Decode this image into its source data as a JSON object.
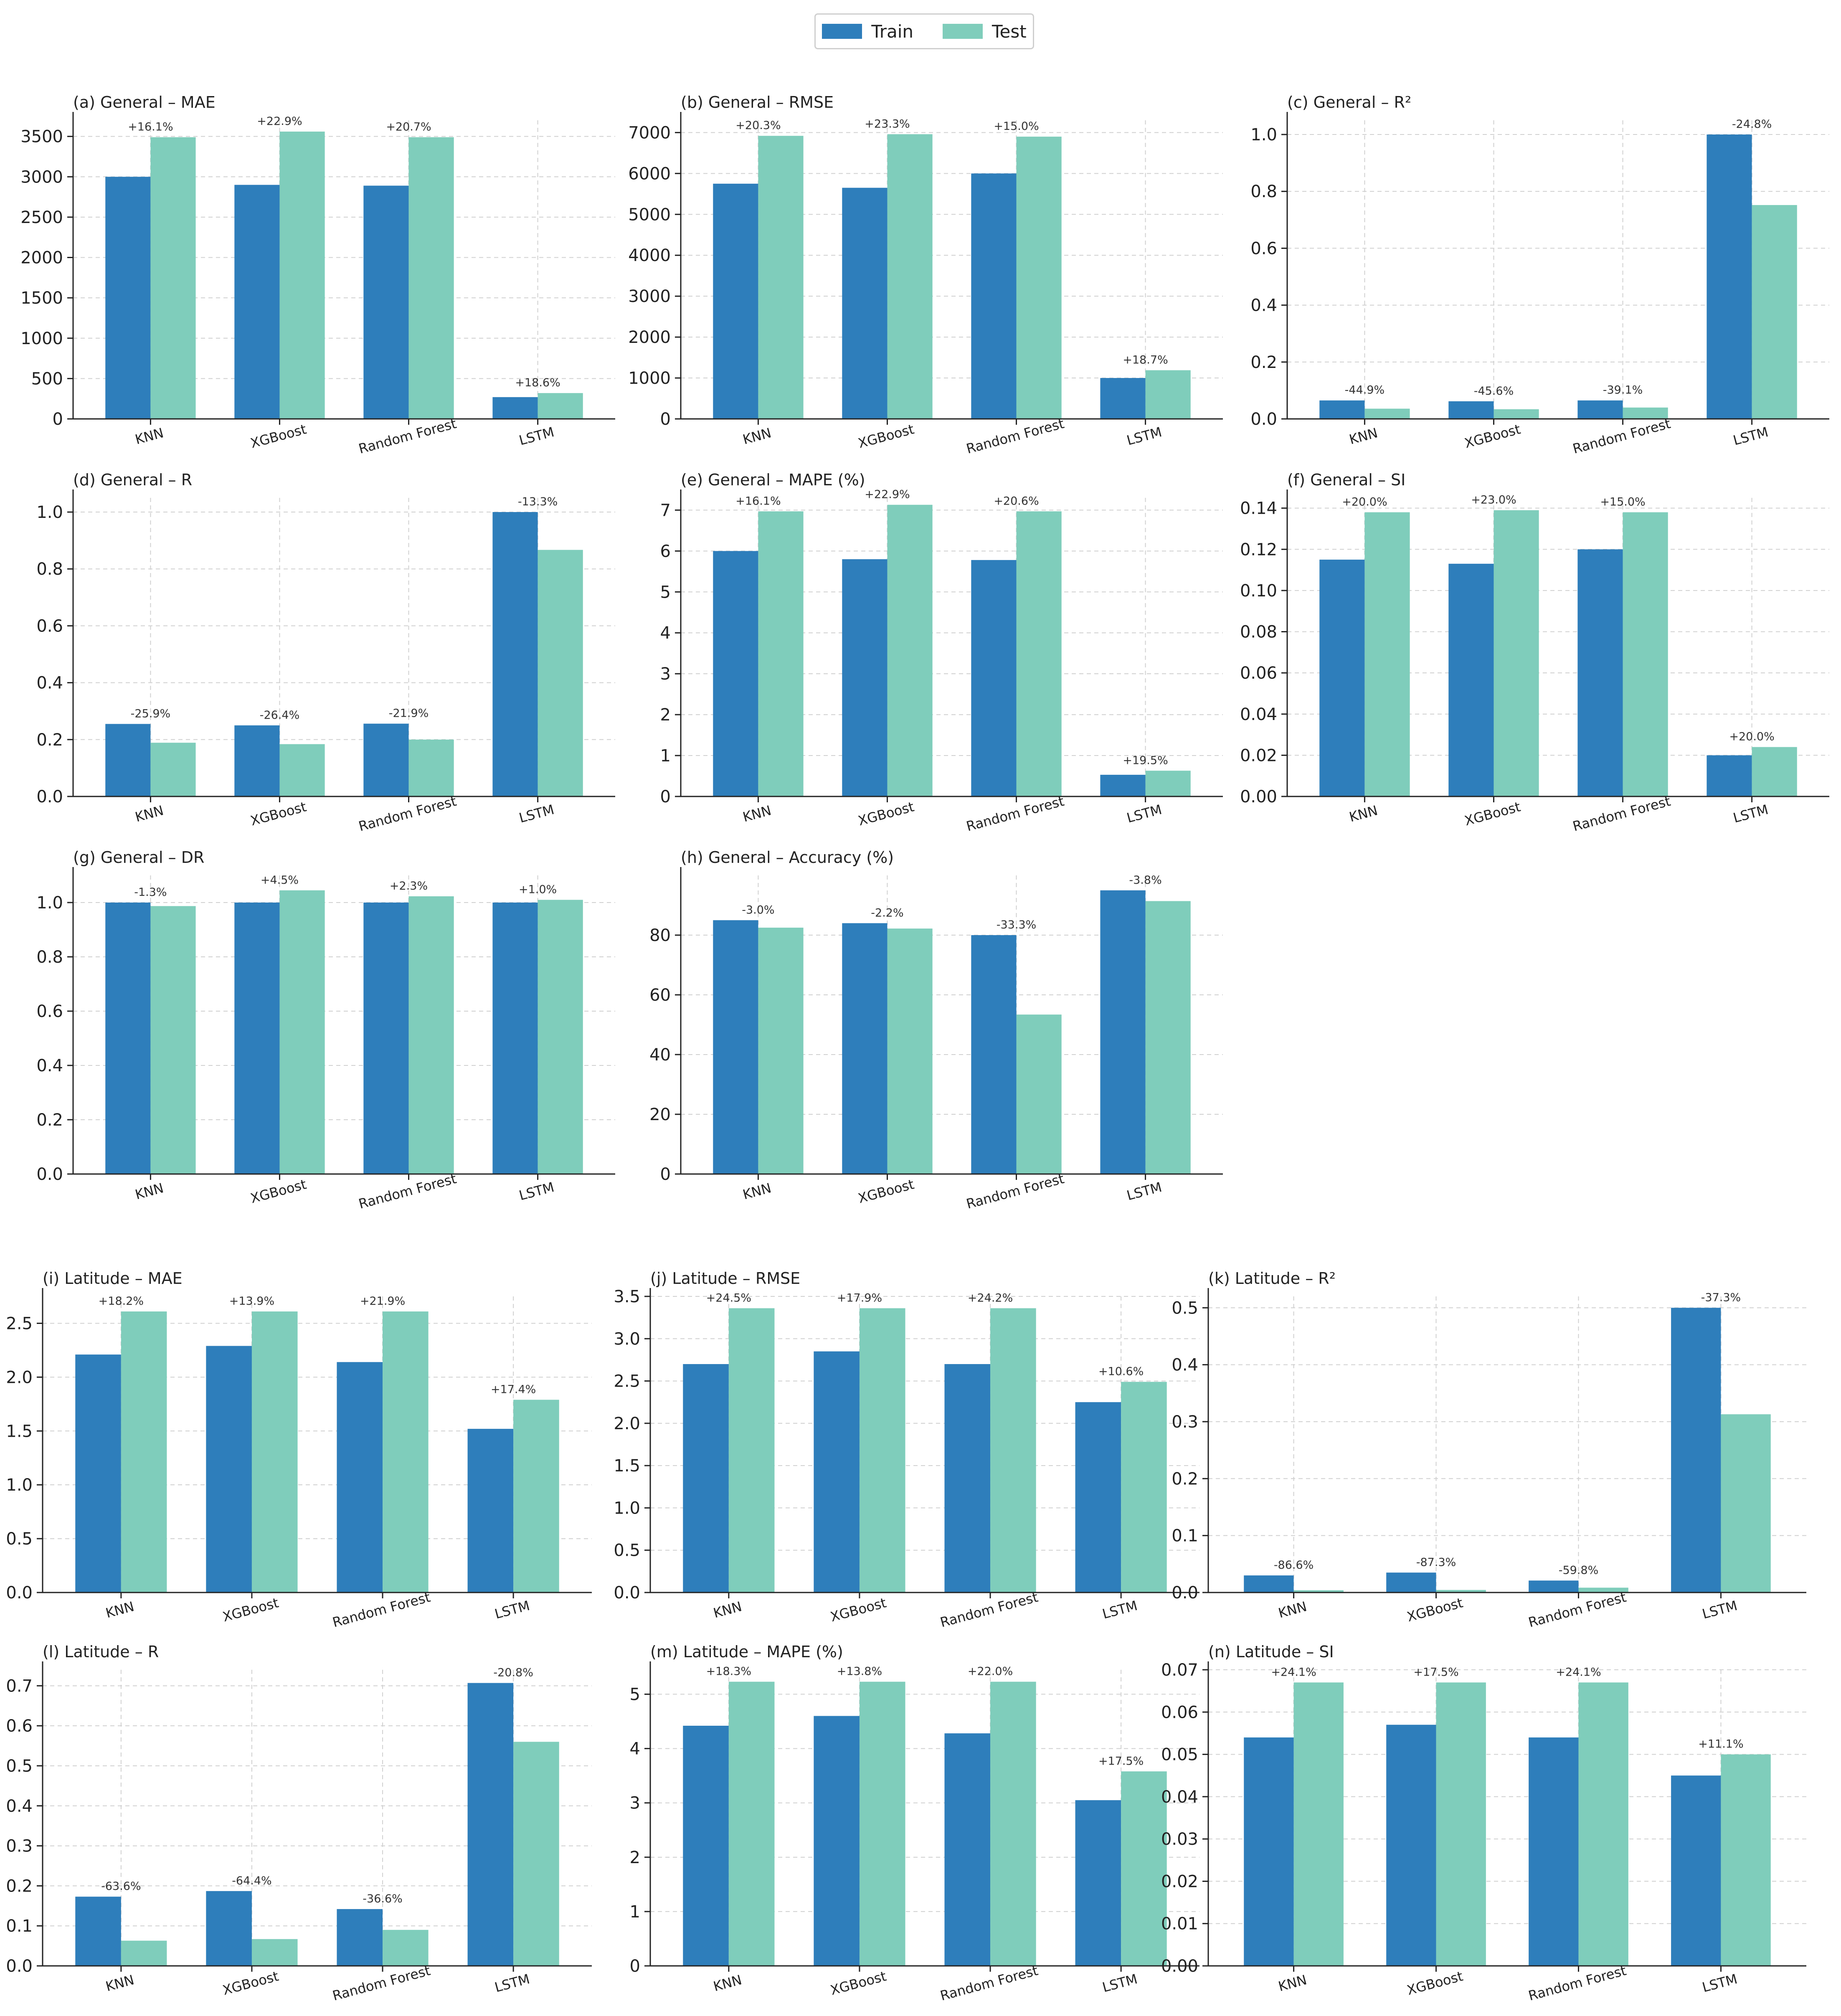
{
  "legend": {
    "train_label": "Train",
    "test_label": "Test"
  },
  "colors": {
    "train": "#2e7ebb",
    "test": "#7fcdbb",
    "grid": "#d0d0d0",
    "axis": "#222222"
  },
  "chart_data": [
    {
      "type": "bar",
      "title": "(a) General – MAE",
      "categories": [
        "KNN",
        "XGBoost",
        "Random Forest",
        "LSTM"
      ],
      "series": [
        {
          "name": "Train",
          "values": [
            3000,
            2900,
            2890,
            270
          ]
        },
        {
          "name": "Test",
          "values": [
            3490,
            3560,
            3490,
            320
          ]
        }
      ],
      "labels": [
        "+16.1%",
        "+22.9%",
        "+20.7%",
        "+18.6%"
      ],
      "ylim": [
        0,
        3700
      ],
      "yticks": [
        0,
        500,
        1000,
        1500,
        2000,
        2500,
        3000,
        3500
      ],
      "tick_format": "int"
    },
    {
      "type": "bar",
      "title": "(b) General – RMSE",
      "categories": [
        "KNN",
        "XGBoost",
        "Random Forest",
        "LSTM"
      ],
      "series": [
        {
          "name": "Train",
          "values": [
            5750,
            5650,
            6000,
            1000
          ]
        },
        {
          "name": "Test",
          "values": [
            6920,
            6960,
            6900,
            1190
          ]
        }
      ],
      "labels": [
        "+20.3%",
        "+23.3%",
        "+15.0%",
        "+18.7%"
      ],
      "ylim": [
        0,
        7300
      ],
      "yticks": [
        0,
        1000,
        2000,
        3000,
        4000,
        5000,
        6000,
        7000
      ],
      "tick_format": "int"
    },
    {
      "type": "bar",
      "title": "(c) General – R²",
      "categories": [
        "KNN",
        "XGBoost",
        "Random Forest",
        "LSTM"
      ],
      "series": [
        {
          "name": "Train",
          "values": [
            0.065,
            0.062,
            0.065,
            1.0
          ]
        },
        {
          "name": "Test",
          "values": [
            0.036,
            0.034,
            0.04,
            0.752
          ]
        }
      ],
      "labels": [
        "-44.9%",
        "-45.6%",
        "-39.1%",
        "-24.8%"
      ],
      "ylim": [
        0,
        1.05
      ],
      "yticks": [
        0,
        0.2,
        0.4,
        0.6,
        0.8,
        1.0
      ],
      "tick_format": "1"
    },
    {
      "type": "bar",
      "title": "(d) General – R",
      "categories": [
        "KNN",
        "XGBoost",
        "Random Forest",
        "LSTM"
      ],
      "series": [
        {
          "name": "Train",
          "values": [
            0.255,
            0.25,
            0.256,
            1.0
          ]
        },
        {
          "name": "Test",
          "values": [
            0.189,
            0.184,
            0.2,
            0.867
          ]
        }
      ],
      "labels": [
        "-25.9%",
        "-26.4%",
        "-21.9%",
        "-13.3%"
      ],
      "ylim": [
        0,
        1.05
      ],
      "yticks": [
        0,
        0.2,
        0.4,
        0.6,
        0.8,
        1.0
      ],
      "tick_format": "1"
    },
    {
      "type": "bar",
      "title": "(e) General – MAPE (%)",
      "categories": [
        "KNN",
        "XGBoost",
        "Random Forest",
        "LSTM"
      ],
      "series": [
        {
          "name": "Train",
          "values": [
            6.0,
            5.8,
            5.78,
            0.53
          ]
        },
        {
          "name": "Test",
          "values": [
            6.97,
            7.13,
            6.97,
            0.63
          ]
        }
      ],
      "labels": [
        "+16.1%",
        "+22.9%",
        "+20.6%",
        "+19.5%"
      ],
      "ylim": [
        0,
        7.3
      ],
      "yticks": [
        0,
        1,
        2,
        3,
        4,
        5,
        6,
        7
      ],
      "tick_format": "int"
    },
    {
      "type": "bar",
      "title": "(f) General – SI",
      "categories": [
        "KNN",
        "XGBoost",
        "Random Forest",
        "LSTM"
      ],
      "series": [
        {
          "name": "Train",
          "values": [
            0.115,
            0.113,
            0.12,
            0.02
          ]
        },
        {
          "name": "Test",
          "values": [
            0.138,
            0.139,
            0.138,
            0.024
          ]
        }
      ],
      "labels": [
        "+20.0%",
        "+23.0%",
        "+15.0%",
        "+20.0%"
      ],
      "ylim": [
        0,
        0.145
      ],
      "yticks": [
        0,
        0.02,
        0.04,
        0.06,
        0.08,
        0.1,
        0.12,
        0.14
      ],
      "tick_format": "2"
    },
    {
      "type": "bar",
      "title": "(g) General – DR",
      "categories": [
        "KNN",
        "XGBoost",
        "Random Forest",
        "LSTM"
      ],
      "series": [
        {
          "name": "Train",
          "values": [
            1.0,
            1.0,
            1.0,
            1.0
          ]
        },
        {
          "name": "Test",
          "values": [
            0.987,
            1.045,
            1.023,
            1.01
          ]
        }
      ],
      "labels": [
        "-1.3%",
        "+4.5%",
        "+2.3%",
        "+1.0%"
      ],
      "ylim": [
        0,
        1.1
      ],
      "yticks": [
        0,
        0.2,
        0.4,
        0.6,
        0.8,
        1.0
      ],
      "tick_format": "1"
    },
    {
      "type": "bar",
      "title": "(h) General – Accuracy (%)",
      "categories": [
        "KNN",
        "XGBoost",
        "Random Forest",
        "LSTM"
      ],
      "series": [
        {
          "name": "Train",
          "values": [
            85,
            84,
            80,
            95
          ]
        },
        {
          "name": "Test",
          "values": [
            82.5,
            82.2,
            53.4,
            91.4
          ]
        }
      ],
      "labels": [
        "-3.0%",
        "-2.2%",
        "-33.3%",
        "-3.8%"
      ],
      "ylim": [
        0,
        100
      ],
      "yticks": [
        0,
        20,
        40,
        60,
        80
      ],
      "tick_format": "int"
    },
    {
      "type": "bar",
      "title": "(i) Latitude – MAE",
      "categories": [
        "KNN",
        "XGBoost",
        "Random Forest",
        "LSTM"
      ],
      "series": [
        {
          "name": "Train",
          "values": [
            2.21,
            2.29,
            2.14,
            1.52
          ]
        },
        {
          "name": "Test",
          "values": [
            2.61,
            2.61,
            2.61,
            1.79
          ]
        }
      ],
      "labels": [
        "+18.2%",
        "+13.9%",
        "+21.9%",
        "+17.4%"
      ],
      "ylim": [
        0,
        2.75
      ],
      "yticks": [
        0,
        0.5,
        1.0,
        1.5,
        2.0,
        2.5
      ],
      "tick_format": "1"
    },
    {
      "type": "bar",
      "title": "(j) Latitude – RMSE",
      "categories": [
        "KNN",
        "XGBoost",
        "Random Forest",
        "LSTM"
      ],
      "series": [
        {
          "name": "Train",
          "values": [
            2.7,
            2.85,
            2.7,
            2.25
          ]
        },
        {
          "name": "Test",
          "values": [
            3.36,
            3.36,
            3.36,
            2.49
          ]
        }
      ],
      "labels": [
        "+24.5%",
        "+17.9%",
        "+24.2%",
        "+10.6%"
      ],
      "ylim": [
        0,
        3.5
      ],
      "yticks": [
        0,
        0.5,
        1.0,
        1.5,
        2.0,
        2.5,
        3.0,
        3.5
      ],
      "tick_format": "1"
    },
    {
      "type": "bar",
      "title": "(k) Latitude – R²",
      "categories": [
        "KNN",
        "XGBoost",
        "Random Forest",
        "LSTM"
      ],
      "series": [
        {
          "name": "Train",
          "values": [
            0.03,
            0.035,
            0.021,
            0.5
          ]
        },
        {
          "name": "Test",
          "values": [
            0.004,
            0.0045,
            0.0085,
            0.313
          ]
        }
      ],
      "labels": [
        "-86.6%",
        "-87.3%",
        "-59.8%",
        "-37.3%"
      ],
      "ylim": [
        0,
        0.52
      ],
      "yticks": [
        0,
        0.1,
        0.2,
        0.3,
        0.4,
        0.5
      ],
      "tick_format": "1"
    },
    {
      "type": "bar",
      "title": "(l) Latitude – R",
      "categories": [
        "KNN",
        "XGBoost",
        "Random Forest",
        "LSTM"
      ],
      "series": [
        {
          "name": "Train",
          "values": [
            0.173,
            0.187,
            0.142,
            0.707
          ]
        },
        {
          "name": "Test",
          "values": [
            0.063,
            0.067,
            0.09,
            0.56
          ]
        }
      ],
      "labels": [
        "-63.6%",
        "-64.4%",
        "-36.6%",
        "-20.8%"
      ],
      "ylim": [
        0,
        0.74
      ],
      "yticks": [
        0,
        0.1,
        0.2,
        0.3,
        0.4,
        0.5,
        0.6,
        0.7
      ],
      "tick_format": "1"
    },
    {
      "type": "bar",
      "title": "(m) Latitude – MAPE (%)",
      "categories": [
        "KNN",
        "XGBoost",
        "Random Forest",
        "LSTM"
      ],
      "series": [
        {
          "name": "Train",
          "values": [
            4.42,
            4.6,
            4.28,
            3.05
          ]
        },
        {
          "name": "Test",
          "values": [
            5.23,
            5.23,
            5.23,
            3.58
          ]
        }
      ],
      "labels": [
        "+18.3%",
        "+13.8%",
        "+22.0%",
        "+17.5%"
      ],
      "ylim": [
        0,
        5.45
      ],
      "yticks": [
        0,
        1,
        2,
        3,
        4,
        5
      ],
      "tick_format": "int"
    },
    {
      "type": "bar",
      "title": "(n) Latitude – SI",
      "categories": [
        "KNN",
        "XGBoost",
        "Random Forest",
        "LSTM"
      ],
      "series": [
        {
          "name": "Train",
          "values": [
            0.054,
            0.057,
            0.054,
            0.045
          ]
        },
        {
          "name": "Test",
          "values": [
            0.067,
            0.067,
            0.067,
            0.05
          ]
        }
      ],
      "labels": [
        "+24.1%",
        "+17.5%",
        "+24.1%",
        "+11.1%"
      ],
      "ylim": [
        0,
        0.07
      ],
      "yticks": [
        0,
        0.01,
        0.02,
        0.03,
        0.04,
        0.05,
        0.06,
        0.07
      ],
      "tick_format": "2"
    }
  ]
}
